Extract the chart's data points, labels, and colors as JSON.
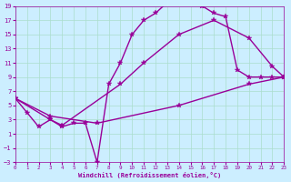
{
  "xlabel": "Windchill (Refroidissement éolien,°C)",
  "bg_color": "#cceeff",
  "grid_color": "#aaddcc",
  "line_color": "#990099",
  "x_min": 0,
  "x_max": 23,
  "y_min": -3,
  "y_max": 19,
  "y_ticks": [
    -3,
    -1,
    1,
    3,
    5,
    7,
    9,
    11,
    13,
    15,
    17,
    19
  ],
  "x_ticks": [
    0,
    1,
    2,
    3,
    4,
    5,
    6,
    7,
    8,
    9,
    10,
    11,
    12,
    13,
    14,
    15,
    16,
    17,
    18,
    19,
    20,
    21,
    22,
    23
  ],
  "line1_x": [
    0,
    1,
    2,
    3,
    4,
    5,
    6,
    7,
    8,
    9,
    10,
    11,
    12,
    13,
    14,
    15,
    16,
    17,
    18,
    19,
    20,
    21,
    22,
    23
  ],
  "line1_y": [
    6,
    4,
    2,
    3,
    2,
    2.5,
    2.5,
    -3,
    8,
    11,
    15,
    17,
    18,
    19.5,
    19.5,
    19.5,
    19,
    18,
    17.5,
    10,
    9,
    9,
    9,
    9
  ],
  "line2_x": [
    0,
    3,
    4,
    9,
    11,
    14,
    17,
    20,
    22,
    23
  ],
  "line2_y": [
    6,
    3,
    2.2,
    8,
    11,
    15,
    17,
    14.5,
    10.5,
    9
  ],
  "line3_x": [
    0,
    3,
    7,
    14,
    20,
    23
  ],
  "line3_y": [
    6,
    3.5,
    2.5,
    5,
    8,
    9
  ],
  "marker": "*",
  "marker_size": 4,
  "linewidth": 1.0
}
